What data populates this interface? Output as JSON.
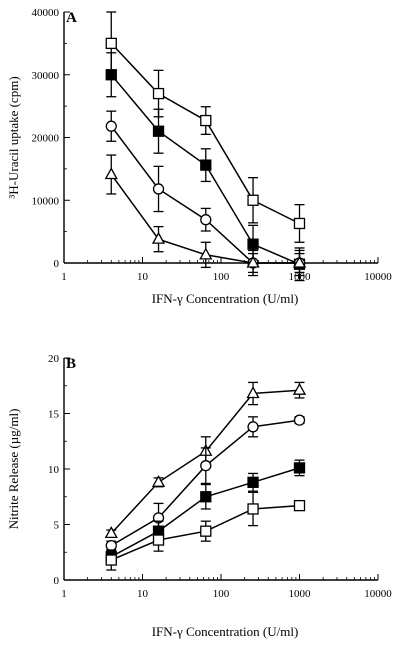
{
  "chart_data": [
    {
      "panel": "A",
      "type": "line",
      "xscale": "log",
      "xlim": [
        1,
        10000
      ],
      "ylim": [
        0,
        40000
      ],
      "xlabel": "IFN-γ Concentration (U/ml)",
      "ylabel": "³H-Uracil uptake (cpm)",
      "x": [
        4,
        16,
        64,
        256,
        1000
      ],
      "xticks": [
        "1",
        "10",
        "100",
        "1000",
        "10000"
      ],
      "yticks": [
        "0",
        "10000",
        "20000",
        "30000",
        "40000"
      ],
      "grid": false,
      "series": [
        {
          "marker": "open-square",
          "values": [
            35000,
            27000,
            22700,
            10000,
            6300
          ],
          "errors": [
            5000,
            3700,
            2200,
            3600,
            3000
          ]
        },
        {
          "marker": "filled-square",
          "values": [
            30000,
            21000,
            15600,
            3000,
            -200
          ],
          "errors": [
            3500,
            3500,
            2600,
            3000,
            2600
          ]
        },
        {
          "marker": "open-circle",
          "values": [
            21800,
            11800,
            6900,
            0,
            0
          ],
          "errors": [
            2400,
            3600,
            1800,
            2000,
            2000
          ]
        },
        {
          "marker": "open-triangle",
          "values": [
            14100,
            3800,
            1300,
            0,
            0
          ],
          "errors": [
            3100,
            2000,
            2000,
            1500,
            1500
          ]
        }
      ]
    },
    {
      "panel": "B",
      "type": "line",
      "xscale": "log",
      "xlim": [
        1,
        10000
      ],
      "ylim": [
        0,
        20
      ],
      "xlabel": "IFN-γ Concentration (U/ml)",
      "ylabel": "Nitrite Release (µg/ml)",
      "x": [
        4,
        16,
        64,
        256,
        1000
      ],
      "xticks": [
        "1",
        "10",
        "100",
        "1000",
        "10000"
      ],
      "yticks": [
        "0",
        "5",
        "10",
        "15",
        "20"
      ],
      "grid": false,
      "series": [
        {
          "marker": "open-triangle",
          "values": [
            4.2,
            8.8,
            11.6,
            16.8,
            17.1
          ],
          "errors": [
            0.3,
            0.4,
            1.3,
            1.0,
            0.7
          ]
        },
        {
          "marker": "open-circle",
          "values": [
            3.1,
            5.6,
            10.3,
            13.8,
            14.4
          ],
          "errors": [
            0.4,
            1.3,
            1.6,
            0.9,
            0.3
          ]
        },
        {
          "marker": "filled-square",
          "values": [
            2.1,
            4.4,
            7.5,
            8.8,
            10.1
          ],
          "errors": [
            0.5,
            0.9,
            1.1,
            0.8,
            0.7
          ]
        },
        {
          "marker": "open-square",
          "values": [
            1.8,
            3.6,
            4.4,
            6.4,
            6.7
          ],
          "errors": [
            0.9,
            1.0,
            0.9,
            1.5,
            0.3
          ]
        }
      ]
    }
  ]
}
